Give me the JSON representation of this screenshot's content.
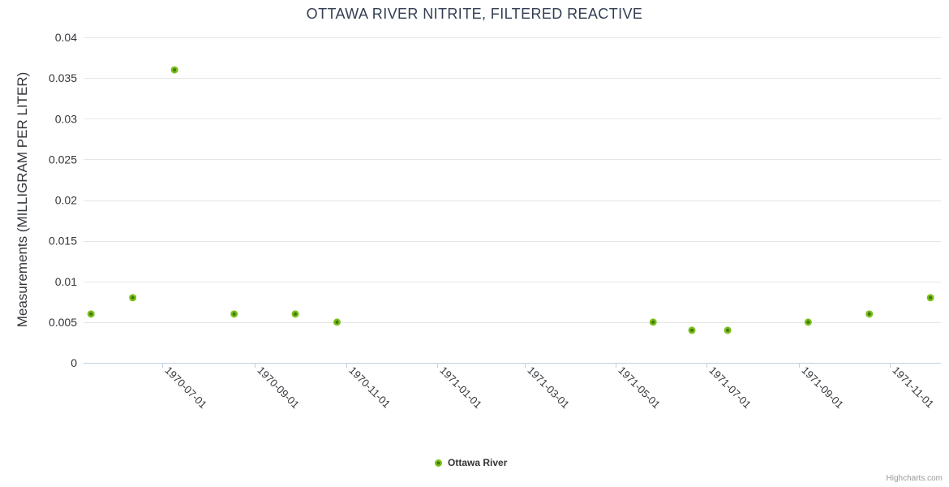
{
  "chart_data": {
    "type": "scatter",
    "title": "OTTAWA RIVER NITRITE, FILTERED REACTIVE",
    "xlabel": "",
    "ylabel": "Measurements (MILLIGRAM PER LITER)",
    "ylim": [
      0,
      0.04
    ],
    "x_range": {
      "min": "1970-05-09",
      "max": "1971-12-05"
    },
    "grid": "horizontal-only",
    "legend_position": "bottom-center",
    "y_ticks": [
      {
        "value": 0,
        "label": "0"
      },
      {
        "value": 0.005,
        "label": "0.005"
      },
      {
        "value": 0.01,
        "label": "0.01"
      },
      {
        "value": 0.015,
        "label": "0.015"
      },
      {
        "value": 0.02,
        "label": "0.02"
      },
      {
        "value": 0.025,
        "label": "0.025"
      },
      {
        "value": 0.03,
        "label": "0.03"
      },
      {
        "value": 0.035,
        "label": "0.035"
      },
      {
        "value": 0.04,
        "label": "0.04"
      }
    ],
    "x_ticks": [
      {
        "date": "1970-07-01",
        "label": "1970-07-01"
      },
      {
        "date": "1970-09-01",
        "label": "1970-09-01"
      },
      {
        "date": "1970-11-01",
        "label": "1970-11-01"
      },
      {
        "date": "1971-01-01",
        "label": "1971-01-01"
      },
      {
        "date": "1971-03-01",
        "label": "1971-03-01"
      },
      {
        "date": "1971-05-01",
        "label": "1971-05-01"
      },
      {
        "date": "1971-07-01",
        "label": "1971-07-01"
      },
      {
        "date": "1971-09-01",
        "label": "1971-09-01"
      },
      {
        "date": "1971-11-01",
        "label": "1971-11-01"
      }
    ],
    "series": [
      {
        "name": "Ottawa River",
        "color": "#7CBF1B",
        "marker_center_color": "#3E7A0A",
        "points": [
          {
            "date": "1970-05-14",
            "value": 0.006
          },
          {
            "date": "1970-06-11",
            "value": 0.008
          },
          {
            "date": "1970-07-09",
            "value": 0.036
          },
          {
            "date": "1970-08-18",
            "value": 0.006
          },
          {
            "date": "1970-09-28",
            "value": 0.006
          },
          {
            "date": "1970-10-26",
            "value": 0.005
          },
          {
            "date": "1971-05-26",
            "value": 0.005
          },
          {
            "date": "1971-06-21",
            "value": 0.004
          },
          {
            "date": "1971-07-15",
            "value": 0.004
          },
          {
            "date": "1971-09-07",
            "value": 0.005
          },
          {
            "date": "1971-10-18",
            "value": 0.006
          },
          {
            "date": "1971-11-28",
            "value": 0.008
          }
        ]
      }
    ]
  },
  "credits": {
    "label": "Highcharts.com"
  },
  "colors": {
    "series": "#7CBF1B",
    "series_center": "#3E7A0A",
    "grid": "#E6E6E6",
    "axis": "#C0D0E0",
    "title": "#333E52",
    "axis_labels": "#32363B",
    "credits": "#999999"
  }
}
